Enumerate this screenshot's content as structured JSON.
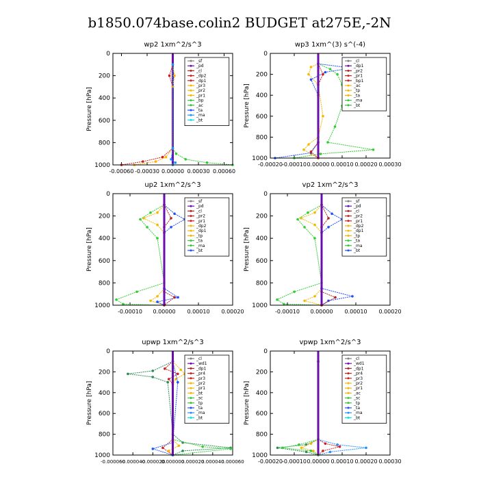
{
  "title": "b1850.074base.colin2  BUDGET at275E,-2N",
  "colors": {
    "sf": "#7f7f7f",
    "pd": "#6a0dad",
    "cl": "#b22222",
    "dp": "#cc1f1f",
    "pr": "#f5b800",
    "pr1": "#ffb000",
    "bp": "#32cd32",
    "ac": "#3bbf3b",
    "tp": "#1f4fff",
    "ta": "#1e90ff",
    "ma": "#ffffff",
    "bt": "#00e5ee",
    "sc": "#2e8b57",
    "frame": "#000000",
    "zero": "#6a0dad"
  },
  "chart_data": [
    {
      "type": "line",
      "title": "wp2   1xm^2/s^3",
      "ylabel": "Pressure  [hPa]",
      "xlim": [
        -0.0007,
        0.0007
      ],
      "ylim": [
        1000,
        0
      ],
      "xticks": [
        -0.0006,
        -0.0003,
        0.0,
        0.0003,
        0.0006
      ],
      "xticklabels": [
        "-0.00060",
        "-0.00030",
        "0.00000",
        "0.00030",
        "0.00060"
      ],
      "yticks": [
        0,
        200,
        400,
        600,
        800,
        1000
      ],
      "yticklabels": [
        "0",
        "200",
        "400",
        "600",
        "800",
        "1000"
      ],
      "legend": [
        "_sf",
        "_pd",
        "_cl",
        "_dp2",
        "_dp1",
        "_pr3",
        "_pr2",
        "_pr1",
        "_bp",
        "_ac",
        "_ta",
        "_ma",
        "_bt"
      ],
      "legend_position": "top-right",
      "series": [
        {
          "name": "_pd",
          "color": "pd",
          "x": [
            0,
            0,
            0,
            0,
            0,
            0
          ],
          "y": [
            0,
            200,
            400,
            600,
            800,
            1000
          ]
        },
        {
          "name": "_dp2",
          "color": "dp",
          "x": [
            0,
            -4e-05,
            0,
            0,
            -0.00012,
            -0.00035,
            -0.0006
          ],
          "y": [
            100,
            200,
            300,
            850,
            930,
            970,
            1000
          ]
        },
        {
          "name": "_pr1",
          "color": "pr1",
          "x": [
            0,
            2e-05,
            0,
            0,
            -8e-05,
            -0.0002,
            -0.00045
          ],
          "y": [
            100,
            200,
            300,
            850,
            930,
            970,
            1000
          ]
        },
        {
          "name": "_bp",
          "color": "bp",
          "x": [
            0,
            0,
            4e-05,
            0.00015,
            0.0004,
            0.0007
          ],
          "y": [
            100,
            850,
            900,
            950,
            980,
            1000
          ]
        },
        {
          "name": "_ta",
          "color": "ta",
          "x": [
            0,
            0,
            -2e-05,
            3e-05,
            0
          ],
          "y": [
            100,
            850,
            950,
            980,
            1000
          ]
        }
      ]
    },
    {
      "type": "line",
      "title": "wp3   1xm^(3) s^(-4)",
      "ylabel": "Pressure  [hPa]",
      "xlim": [
        -0.0002,
        0.0003
      ],
      "ylim": [
        1000,
        0
      ],
      "xticks": [
        -0.0002,
        -0.0001,
        0.0,
        0.0001,
        0.0002,
        0.0003
      ],
      "xticklabels": [
        "-0.00020",
        "-0.00010",
        "0.00000",
        "0.00010",
        "0.00020",
        "0.00030"
      ],
      "yticks": [
        0,
        200,
        400,
        600,
        800,
        1000
      ],
      "yticklabels": [
        "0",
        "200",
        "400",
        "600",
        "800",
        "1000"
      ],
      "legend": [
        "_cl",
        "_dp1",
        "_pr2",
        "_pr1",
        "_bp1",
        "_ac",
        "_tp",
        "_ta",
        "_ma",
        "_bt"
      ],
      "legend_position": "top-right",
      "series": [
        {
          "name": "_pr2",
          "color": "pr",
          "x": [
            0,
            -3e-05,
            -4e-05,
            0,
            2e-05,
            0,
            -4e-05,
            -6e-05,
            -3e-05,
            0
          ],
          "y": [
            100,
            130,
            200,
            300,
            600,
            800,
            870,
            920,
            960,
            1000
          ]
        },
        {
          "name": "_bp1",
          "color": "bp",
          "x": [
            0,
            5e-05,
            8e-05,
            0.0001,
            0.0001,
            7e-05,
            4e-05,
            0.00023,
            1e-05,
            -0.0001
          ],
          "y": [
            100,
            150,
            200,
            300,
            500,
            700,
            850,
            920,
            960,
            1000
          ]
        },
        {
          "name": "_tp",
          "color": "tp",
          "x": [
            0,
            0.00014,
            3e-05,
            -3e-05,
            0,
            0,
            -3e-05,
            -0.00018
          ],
          "y": [
            100,
            140,
            180,
            250,
            400,
            850,
            950,
            1000
          ]
        },
        {
          "name": "_dp1",
          "color": "dp",
          "x": [
            0,
            2e-05,
            0,
            0,
            -3e-05,
            0
          ],
          "y": [
            100,
            200,
            300,
            850,
            940,
            1000
          ]
        },
        {
          "name": "_pd",
          "color": "pd",
          "x": [
            0,
            0,
            0,
            0,
            0,
            0
          ],
          "y": [
            0,
            200,
            400,
            600,
            800,
            1000
          ]
        }
      ]
    },
    {
      "type": "line",
      "title": "up2   1xm^2/s^3",
      "ylabel": "Pressure  [hPa]",
      "xlim": [
        -0.00015,
        0.0002
      ],
      "ylim": [
        1000,
        0
      ],
      "xticks": [
        -0.0001,
        0.0,
        0.0001,
        0.0002
      ],
      "xticklabels": [
        "-0.00010",
        "0.00000",
        "0.00010",
        "0.00020"
      ],
      "yticks": [
        0,
        200,
        400,
        600,
        800,
        1000
      ],
      "yticklabels": [
        "0",
        "200",
        "400",
        "600",
        "800",
        "1000"
      ],
      "legend": [
        "_sf",
        "_pd",
        "_cl",
        "_pr2",
        "_pr1",
        "_dp2",
        "_dp1",
        "_tp",
        "_ta",
        "_ma",
        "_bt"
      ],
      "legend_position": "top-right",
      "series": [
        {
          "name": "_pr2",
          "color": "pr",
          "x": [
            0,
            -2e-05,
            -6e-05,
            -2e-05,
            0,
            0,
            -2e-05,
            -4e-05,
            0
          ],
          "y": [
            100,
            170,
            220,
            280,
            350,
            850,
            920,
            960,
            1000
          ]
        },
        {
          "name": "_dp2",
          "color": "bp",
          "x": [
            0,
            -4e-05,
            -7e-05,
            -5e-05,
            -2e-05,
            0,
            -8e-05,
            -0.00014,
            -0.00012,
            0
          ],
          "y": [
            100,
            170,
            230,
            300,
            400,
            800,
            880,
            950,
            990,
            1000
          ]
        },
        {
          "name": "_tp",
          "color": "tp",
          "x": [
            0,
            3e-05,
            6e-05,
            2e-05,
            0,
            0,
            4e-05,
            -2e-05,
            0
          ],
          "y": [
            100,
            180,
            230,
            300,
            350,
            850,
            930,
            970,
            1000
          ]
        },
        {
          "name": "_cl",
          "color": "cl",
          "x": [
            0,
            2e-05,
            0,
            0,
            3e-05,
            0
          ],
          "y": [
            100,
            220,
            300,
            880,
            930,
            1000
          ]
        },
        {
          "name": "_pd",
          "color": "pd",
          "x": [
            0,
            0,
            0,
            0,
            0,
            0
          ],
          "y": [
            0,
            200,
            400,
            600,
            800,
            1000
          ]
        }
      ]
    },
    {
      "type": "line",
      "title": "vp2   1xm^2/s^3",
      "ylabel": "Pressure  [hPa]",
      "xlim": [
        -0.00015,
        0.0002
      ],
      "ylim": [
        1000,
        0
      ],
      "xticks": [
        -0.0001,
        0.0,
        0.0001,
        0.0002
      ],
      "xticklabels": [
        "-0.00010",
        "0.00000",
        "0.00010",
        "0.00020"
      ],
      "yticks": [
        0,
        200,
        400,
        600,
        800,
        1000
      ],
      "yticklabels": [
        "0",
        "200",
        "400",
        "600",
        "800",
        "1000"
      ],
      "legend": [
        "_sf",
        "_pd",
        "_cl",
        "_pr2",
        "_pr1",
        "_dp2",
        "_dp1",
        "_tp",
        "_ta",
        "_ma",
        "_bt"
      ],
      "legend_position": "top-right",
      "series": [
        {
          "name": "_pr2",
          "color": "pr",
          "x": [
            0,
            -2e-05,
            -6e-05,
            -2e-05,
            0,
            0,
            -2e-05,
            -5e-05,
            0
          ],
          "y": [
            100,
            170,
            220,
            280,
            350,
            850,
            920,
            960,
            1000
          ]
        },
        {
          "name": "_dp2",
          "color": "bp",
          "x": [
            0,
            -4e-05,
            -7e-05,
            -5e-05,
            -2e-05,
            0,
            -8e-05,
            -0.00013,
            -0.00011,
            0
          ],
          "y": [
            100,
            170,
            230,
            300,
            400,
            800,
            880,
            950,
            990,
            1000
          ]
        },
        {
          "name": "_tp",
          "color": "tp",
          "x": [
            0,
            3e-05,
            6e-05,
            2e-05,
            0,
            0,
            9e-05,
            2e-05,
            0
          ],
          "y": [
            100,
            180,
            230,
            300,
            350,
            850,
            920,
            960,
            1000
          ]
        },
        {
          "name": "_cl",
          "color": "cl",
          "x": [
            0,
            2e-05,
            0,
            0,
            4e-05,
            0
          ],
          "y": [
            100,
            220,
            300,
            880,
            930,
            1000
          ]
        },
        {
          "name": "_pd",
          "color": "pd",
          "x": [
            0,
            0,
            0,
            0,
            0,
            0
          ],
          "y": [
            0,
            200,
            400,
            600,
            800,
            1000
          ]
        }
      ]
    },
    {
      "type": "line",
      "title": "upwp   1xm^2/s^3",
      "ylabel": "Pressure  [hPa]",
      "xlim": [
        -6e-05,
        6e-05
      ],
      "ylim": [
        1000,
        0
      ],
      "xticks": [
        -6e-05,
        -4e-05,
        -2e-05,
        0.0,
        2e-05,
        4e-05,
        6e-05
      ],
      "xticklabels": [
        "-0.000060",
        "-0.000040",
        "-0.000020",
        "0.000000",
        "0.000020",
        "0.000040",
        "0.000060"
      ],
      "yticks": [
        0,
        200,
        400,
        600,
        800,
        1000
      ],
      "yticklabels": [
        "0",
        "200",
        "400",
        "600",
        "800",
        "1000"
      ],
      "legend": [
        "_cl",
        "_wd1",
        "_dp1",
        "_pr4",
        "_pr3",
        "_pr2",
        "_pr1",
        "_bt",
        "_sc",
        "_tp",
        "_ta",
        "_ma",
        "_bt"
      ],
      "legend_position": "top-right",
      "series": [
        {
          "name": "_ta",
          "color": "sc",
          "x": [
            0,
            -2e-05,
            -4.5e-05,
            -2e-05,
            -5e-06,
            0,
            1e-05,
            5.8e-05,
            1e-05,
            0
          ],
          "y": [
            100,
            190,
            220,
            250,
            300,
            800,
            880,
            930,
            960,
            1000
          ]
        },
        {
          "name": "_dp1",
          "color": "dp",
          "x": [
            0,
            -8e-06,
            5e-06,
            -4e-06,
            0,
            0,
            -1e-05,
            0
          ],
          "y": [
            100,
            170,
            220,
            270,
            320,
            850,
            930,
            1000
          ]
        },
        {
          "name": "_pr3",
          "color": "pr",
          "x": [
            0,
            8e-06,
            1.2e-05,
            3e-06,
            0,
            0,
            6e-06,
            -4e-06,
            0
          ],
          "y": [
            100,
            180,
            220,
            270,
            320,
            850,
            910,
            960,
            1000
          ]
        },
        {
          "name": "_bp",
          "color": "bp",
          "x": [
            0,
            0,
            3e-05,
            5.8e-05,
            0
          ],
          "y": [
            100,
            850,
            920,
            940,
            1000
          ]
        },
        {
          "name": "_tp",
          "color": "tp",
          "x": [
            0,
            5e-06,
            0,
            -2e-05,
            0
          ],
          "y": [
            100,
            300,
            880,
            940,
            1000
          ]
        },
        {
          "name": "_cl",
          "color": "pd",
          "x": [
            0,
            0,
            0,
            0,
            0,
            0
          ],
          "y": [
            0,
            200,
            400,
            600,
            800,
            1000
          ]
        }
      ]
    },
    {
      "type": "line",
      "title": "vpwp   1xm^2/s^3",
      "ylabel": "Pressure  [hPa]",
      "xlim": [
        -0.0002,
        0.0003
      ],
      "ylim": [
        1000,
        0
      ],
      "xticks": [
        -0.0002,
        -0.0001,
        0.0,
        0.0001,
        0.0002,
        0.0003
      ],
      "xticklabels": [
        "-0.00020",
        "-0.00010",
        "0.00000",
        "0.00010",
        "0.00020",
        "0.00030"
      ],
      "yticks": [
        0,
        200,
        400,
        600,
        800,
        1000
      ],
      "yticklabels": [
        "0",
        "200",
        "400",
        "600",
        "800",
        "1000"
      ],
      "legend": [
        "_cl",
        "_wd1",
        "_dp1",
        "_pr4",
        "_pr3",
        "_pr2",
        "_pr1",
        "_ac",
        "_sc",
        "_tp",
        "_ta",
        "_ma",
        "_bt"
      ],
      "legend_position": "top-right",
      "series": [
        {
          "name": "_ta",
          "color": "sc",
          "x": [
            0,
            0,
            -5e-05,
            -0.00017,
            -5e-05,
            0
          ],
          "y": [
            100,
            850,
            900,
            930,
            970,
            1000
          ]
        },
        {
          "name": "_tp",
          "color": "ta",
          "x": [
            0,
            0,
            8e-05,
            0.0002,
            5e-05,
            0
          ],
          "y": [
            100,
            850,
            900,
            930,
            970,
            1000
          ]
        },
        {
          "name": "_dp1",
          "color": "dp",
          "x": [
            0,
            0,
            3e-05,
            9e-05,
            2e-05,
            0
          ],
          "y": [
            100,
            850,
            890,
            920,
            960,
            1000
          ]
        },
        {
          "name": "_pr2",
          "color": "pr",
          "x": [
            0,
            0,
            -3e-05,
            -7e-05,
            -2e-05,
            0
          ],
          "y": [
            100,
            850,
            890,
            930,
            960,
            1000
          ]
        },
        {
          "name": "_bp",
          "color": "bp",
          "x": [
            0,
            0,
            -8e-05,
            -0.00015,
            -3e-05,
            0
          ],
          "y": [
            100,
            850,
            900,
            930,
            960,
            1000
          ]
        },
        {
          "name": "_cl",
          "color": "pd",
          "x": [
            0,
            0,
            0,
            0,
            0,
            0
          ],
          "y": [
            0,
            200,
            400,
            600,
            800,
            1000
          ]
        }
      ]
    }
  ]
}
